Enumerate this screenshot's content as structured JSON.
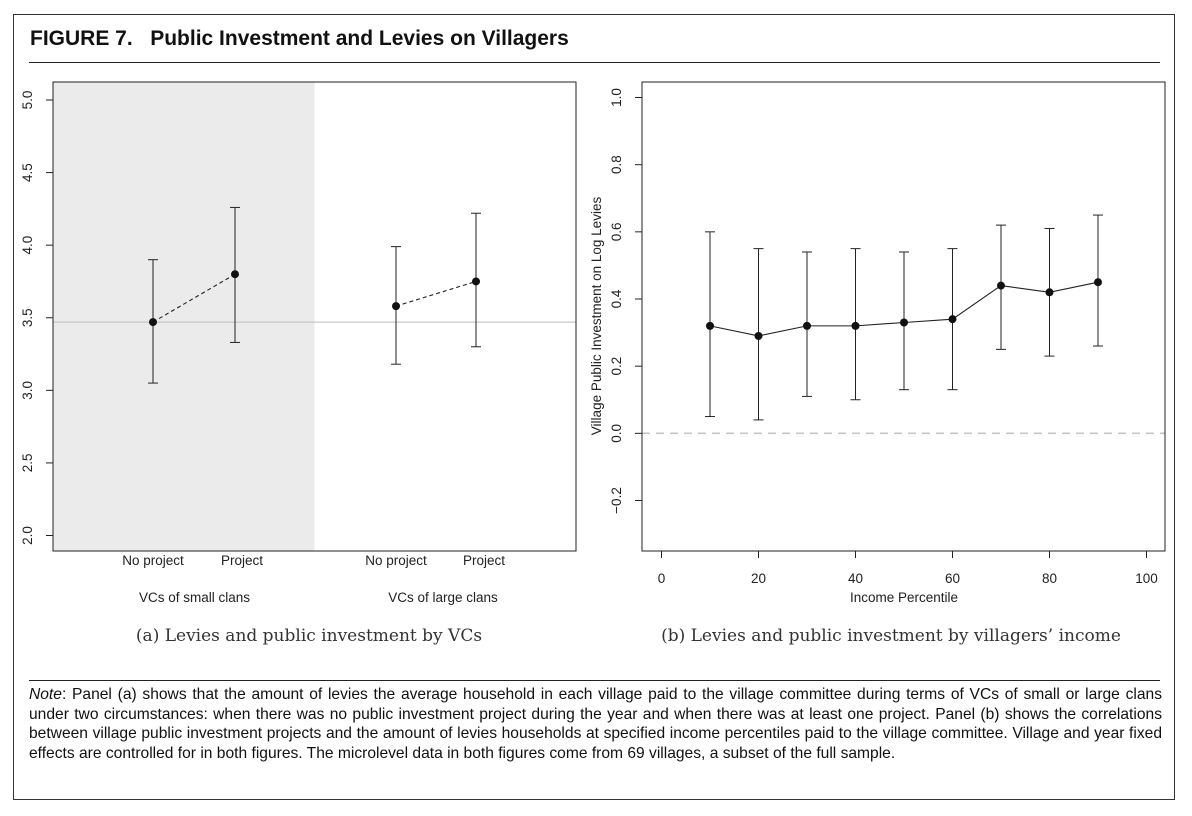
{
  "figure": {
    "label": "FIGURE 7.",
    "title": "Public Investment and Levies on Villagers"
  },
  "chart_data": [
    {
      "type": "scatter",
      "panel": "(a)",
      "caption": "(a) Levies and public investment by VCs",
      "title": "",
      "xlabel": "",
      "ylabel": "",
      "ylim": [
        2.0,
        5.0
      ],
      "yticks": [
        "2.0",
        "2.5",
        "3.0",
        "3.5",
        "4.0",
        "4.5",
        "5.0"
      ],
      "reference_line_y": 3.47,
      "groups": [
        {
          "label": "VCs of small clans",
          "shaded": true,
          "shade_color": "#ebebeb",
          "categories": [
            "No project",
            "Project"
          ],
          "estimates": [
            3.47,
            3.8
          ],
          "ci_low": [
            3.05,
            3.33
          ],
          "ci_high": [
            3.9,
            4.26
          ]
        },
        {
          "label": "VCs of large clans",
          "shaded": false,
          "categories": [
            "No project",
            "Project"
          ],
          "estimates": [
            3.58,
            3.75
          ],
          "ci_low": [
            3.18,
            3.3
          ],
          "ci_high": [
            3.99,
            4.22
          ]
        }
      ],
      "connector_style": "dashed",
      "grid": false
    },
    {
      "type": "line",
      "panel": "(b)",
      "caption": "(b) Levies and public investment by villagers’ income",
      "title": "",
      "xlabel": "Income Percentile",
      "ylabel": "Village Public Investment on Log Levies",
      "xlim": [
        0,
        100
      ],
      "ylim": [
        -0.2,
        1.0
      ],
      "xticks": [
        "0",
        "20",
        "40",
        "60",
        "80",
        "100"
      ],
      "yticks": [
        "−0.2",
        "0.0",
        "0.2",
        "0.4",
        "0.6",
        "0.8",
        "1.0"
      ],
      "reference_line_y": 0.0,
      "reference_line_style": "dashed gray",
      "x": [
        10,
        20,
        30,
        40,
        50,
        60,
        70,
        80,
        90
      ],
      "estimates": [
        0.32,
        0.29,
        0.32,
        0.32,
        0.33,
        0.34,
        0.44,
        0.42,
        0.45
      ],
      "ci_low": [
        0.05,
        0.04,
        0.11,
        0.1,
        0.13,
        0.13,
        0.25,
        0.23,
        0.26
      ],
      "ci_high": [
        0.6,
        0.55,
        0.54,
        0.55,
        0.54,
        0.55,
        0.62,
        0.61,
        0.65
      ],
      "grid": false
    }
  ],
  "note": {
    "label": "Note",
    "text": ": Panel (a) shows that the amount of levies the average household in each village paid to the village committee during terms of VCs of small or large clans under two circumstances: when there was no public investment project during the year and when there was at least one project. Panel (b) shows the correlations between village public investment projects and the amount of levies households at specified income percentiles paid to the village committee. Village and year fixed effects are controlled for in both figures. The microlevel data in both figures come from 69 villages, a subset of the full sample."
  }
}
